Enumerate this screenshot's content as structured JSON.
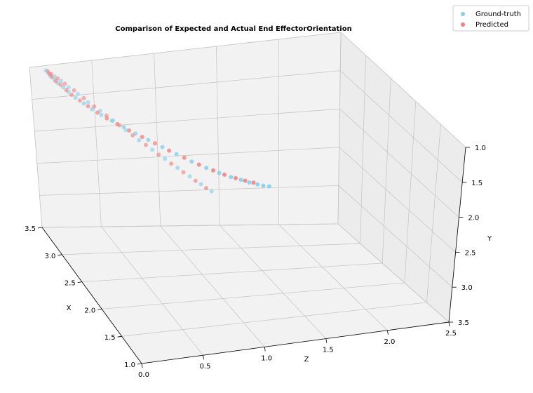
{
  "chart_data": {
    "type": "scatter",
    "title": "Comparison of Expected and Actual End EffectorOrientation",
    "xlabel": "X",
    "ylabel": "Y",
    "zlabel": "Z",
    "xlim": [
      1.0,
      3.5
    ],
    "ylim": [
      3.5,
      1.0
    ],
    "zlim": [
      0.0,
      2.5
    ],
    "x_ticks": [
      "1.0",
      "1.5",
      "2.0",
      "2.5",
      "3.0",
      "3.5"
    ],
    "y_ticks": [
      "1.0",
      "1.5",
      "2.0",
      "2.5",
      "3.0",
      "3.5"
    ],
    "z_ticks": [
      "0.0",
      "0.5",
      "1.0",
      "1.5",
      "2.0",
      "2.5"
    ],
    "grid": true,
    "legend_position": "top-right",
    "series": [
      {
        "name": "Ground-truth",
        "color": "#87ceeb",
        "points": [
          [
            3.42,
            1.01,
            0.1
          ],
          [
            3.43,
            1.06,
            0.12
          ],
          [
            3.44,
            1.12,
            0.14
          ],
          [
            3.44,
            1.18,
            0.17
          ],
          [
            3.45,
            1.25,
            0.2
          ],
          [
            3.45,
            1.32,
            0.24
          ],
          [
            3.45,
            1.4,
            0.28
          ],
          [
            3.44,
            1.49,
            0.33
          ],
          [
            3.43,
            1.58,
            0.39
          ],
          [
            3.42,
            1.67,
            0.45
          ],
          [
            3.41,
            1.76,
            0.52
          ],
          [
            3.4,
            1.85,
            0.6
          ],
          [
            3.39,
            1.95,
            0.69
          ],
          [
            3.38,
            2.05,
            0.78
          ],
          [
            3.37,
            2.15,
            0.88
          ],
          [
            3.36,
            2.26,
            0.99
          ],
          [
            3.35,
            2.37,
            1.1
          ],
          [
            3.34,
            2.48,
            1.22
          ],
          [
            3.34,
            2.58,
            1.34
          ],
          [
            3.35,
            2.67,
            1.45
          ],
          [
            3.36,
            2.74,
            1.55
          ],
          [
            3.38,
            2.8,
            1.64
          ],
          [
            3.41,
            2.86,
            1.72
          ],
          [
            3.44,
            2.91,
            1.8
          ],
          [
            3.47,
            2.95,
            1.86
          ],
          [
            3.5,
            2.98,
            1.92
          ],
          [
            3.3,
            1.02,
            0.12
          ],
          [
            3.22,
            1.04,
            0.14
          ],
          [
            3.12,
            1.07,
            0.16
          ],
          [
            3.01,
            1.1,
            0.19
          ],
          [
            2.88,
            1.14,
            0.22
          ],
          [
            2.74,
            1.18,
            0.26
          ],
          [
            2.58,
            1.22,
            0.3
          ],
          [
            2.42,
            1.26,
            0.34
          ],
          [
            2.25,
            1.3,
            0.38
          ],
          [
            2.08,
            1.33,
            0.42
          ],
          [
            1.92,
            1.36,
            0.46
          ],
          [
            1.76,
            1.39,
            0.5
          ],
          [
            1.61,
            1.42,
            0.54
          ],
          [
            1.48,
            1.45,
            0.58
          ],
          [
            1.36,
            1.48,
            0.62
          ]
        ]
      },
      {
        "name": "Predicted",
        "color": "#f08080",
        "points": [
          [
            3.41,
            1.02,
            0.11
          ],
          [
            3.43,
            1.08,
            0.13
          ],
          [
            3.44,
            1.14,
            0.15
          ],
          [
            3.44,
            1.21,
            0.18
          ],
          [
            3.45,
            1.28,
            0.22
          ],
          [
            3.44,
            1.36,
            0.26
          ],
          [
            3.44,
            1.44,
            0.3
          ],
          [
            3.43,
            1.53,
            0.36
          ],
          [
            3.42,
            1.62,
            0.42
          ],
          [
            3.41,
            1.72,
            0.49
          ],
          [
            3.4,
            1.81,
            0.56
          ],
          [
            3.39,
            1.9,
            0.64
          ],
          [
            3.38,
            2.0,
            0.73
          ],
          [
            3.37,
            2.1,
            0.83
          ],
          [
            3.36,
            2.2,
            0.93
          ],
          [
            3.35,
            2.31,
            1.04
          ],
          [
            3.34,
            2.42,
            1.16
          ],
          [
            3.34,
            2.53,
            1.28
          ],
          [
            3.35,
            2.63,
            1.4
          ],
          [
            3.37,
            2.71,
            1.5
          ],
          [
            3.39,
            2.78,
            1.6
          ],
          [
            3.42,
            2.84,
            1.69
          ],
          [
            3.45,
            2.89,
            1.77
          ],
          [
            3.34,
            1.01,
            0.11
          ],
          [
            3.26,
            1.03,
            0.13
          ],
          [
            3.17,
            1.05,
            0.15
          ],
          [
            3.06,
            1.08,
            0.18
          ],
          [
            2.94,
            1.12,
            0.21
          ],
          [
            2.81,
            1.16,
            0.24
          ],
          [
            2.66,
            1.2,
            0.28
          ],
          [
            2.5,
            1.24,
            0.32
          ],
          [
            2.33,
            1.28,
            0.36
          ],
          [
            2.16,
            1.31,
            0.4
          ],
          [
            2.0,
            1.35,
            0.44
          ],
          [
            1.84,
            1.38,
            0.48
          ],
          [
            1.69,
            1.41,
            0.52
          ],
          [
            1.54,
            1.44,
            0.56
          ],
          [
            1.42,
            1.47,
            0.6
          ]
        ]
      }
    ]
  }
}
